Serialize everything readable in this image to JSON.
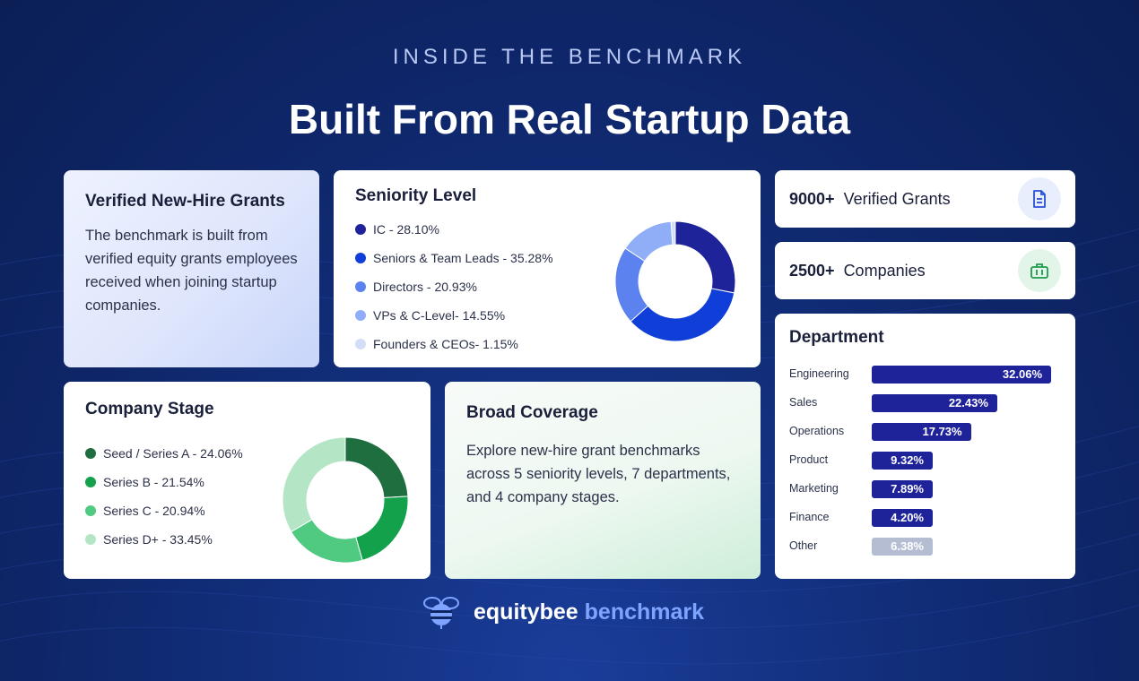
{
  "header": {
    "eyebrow": "INSIDE THE BENCHMARK",
    "title": "Built From Real Startup Data"
  },
  "verified": {
    "title": "Verified New-Hire Grants",
    "body": "The benchmark is built from verified equity grants employees received when joining startup companies."
  },
  "stats": {
    "grants": {
      "num": "9000+",
      "label": "Verified Grants",
      "icon": "document-icon"
    },
    "companies": {
      "num": "2500+",
      "label": "Companies",
      "icon": "briefcase-icon"
    }
  },
  "coverage": {
    "title": "Broad Coverage",
    "body": "Explore new-hire grant benchmarks across 5 seniority levels, 7 departments, and 4 company stages."
  },
  "footer": {
    "brand": "equitybee",
    "product": " benchmark"
  },
  "colors": {
    "navy": "#1f239a",
    "green_dark": "#1e6e3f",
    "grey": "#b4bdd2"
  },
  "chart_data": [
    {
      "type": "pie",
      "title": "Seniority Level",
      "donut": true,
      "legend_position": "left",
      "categories": [
        {
          "label": "IC - 28.10%",
          "value": 28.1,
          "color": "#1f239a"
        },
        {
          "label": "Seniors & Team Leads - 35.28%",
          "value": 35.28,
          "color": "#0f3fd8"
        },
        {
          "label": "Directors - 20.93%",
          "value": 20.93,
          "color": "#5b82ef"
        },
        {
          "label": "VPs & C-Level- 14.55%",
          "value": 14.55,
          "color": "#90aef7"
        },
        {
          "label": "Founders & CEOs- 1.15%",
          "value": 1.15,
          "color": "#d3ddfa"
        }
      ]
    },
    {
      "type": "pie",
      "title": "Company Stage",
      "donut": true,
      "legend_position": "left",
      "categories": [
        {
          "label": "Seed / Series A - 24.06%",
          "value": 24.06,
          "color": "#1e6e3f"
        },
        {
          "label": "Series B - 21.54%",
          "value": 21.54,
          "color": "#13a24b"
        },
        {
          "label": "Series C - 20.94%",
          "value": 20.94,
          "color": "#4fca80"
        },
        {
          "label": "Series D+ - 33.45%",
          "value": 33.45,
          "color": "#b4e6c6"
        }
      ]
    },
    {
      "type": "bar",
      "orientation": "horizontal",
      "title": "Department",
      "categories": [
        "Engineering",
        "Sales",
        "Operations",
        "Product",
        "Marketing",
        "Finance",
        "Other"
      ],
      "values": [
        32.06,
        22.43,
        17.73,
        9.32,
        7.89,
        4.2,
        6.38
      ],
      "value_labels": [
        "32.06%",
        "22.43%",
        "17.73%",
        "9.32%",
        "7.89%",
        "4.20%",
        "6.38%"
      ],
      "bar_colors": [
        "#1f239a",
        "#1f239a",
        "#1f239a",
        "#1f239a",
        "#1f239a",
        "#1f239a",
        "#b4bdd2"
      ]
    }
  ]
}
